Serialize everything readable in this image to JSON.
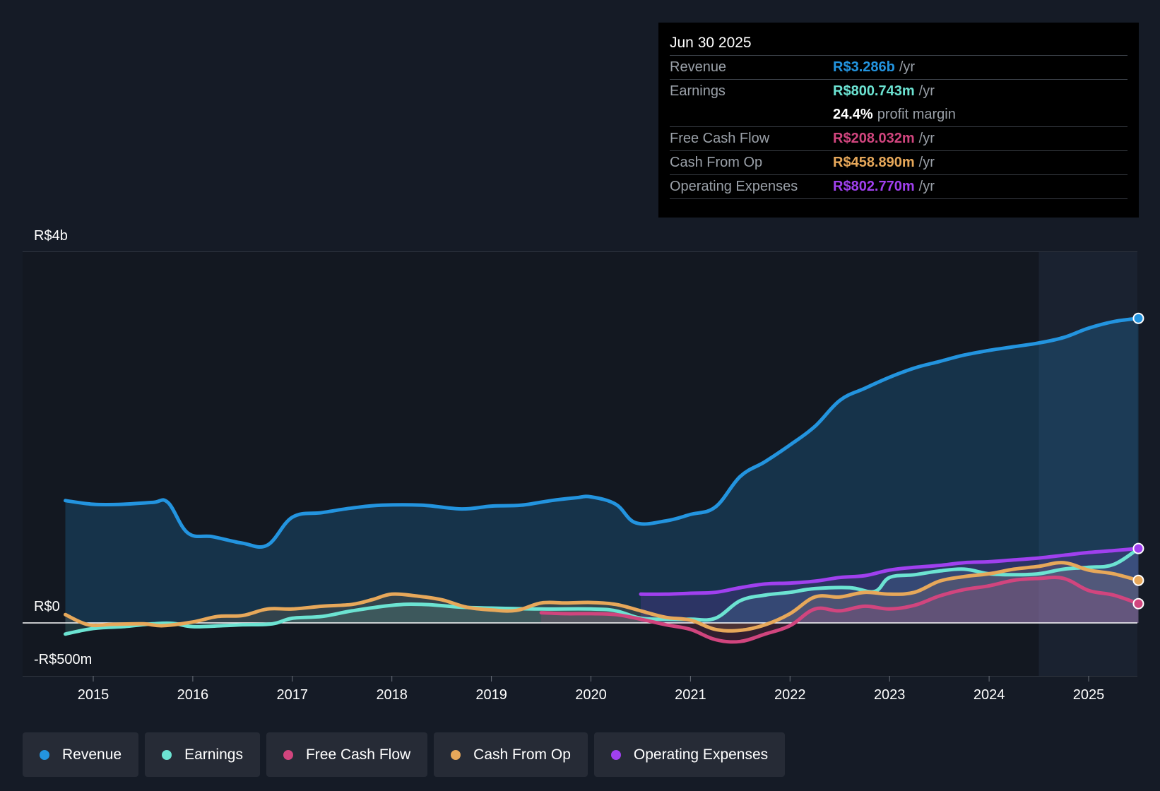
{
  "tooltip": {
    "date": "Jun 30 2025",
    "rows": {
      "revenue": {
        "name": "Revenue",
        "value": "R$3.286b",
        "unit": "/yr"
      },
      "earnings": {
        "name": "Earnings",
        "value": "R$800.743m",
        "unit": "/yr"
      },
      "margin": {
        "value": "24.4%",
        "label": "profit margin"
      },
      "fcf": {
        "name": "Free Cash Flow",
        "value": "R$208.032m",
        "unit": "/yr"
      },
      "cfo": {
        "name": "Cash From Op",
        "value": "R$458.890m",
        "unit": "/yr"
      },
      "opex": {
        "name": "Operating Expenses",
        "value": "R$802.770m",
        "unit": "/yr"
      }
    }
  },
  "legend": {
    "revenue": "Revenue",
    "earnings": "Earnings",
    "fcf": "Free Cash Flow",
    "cfo": "Cash From Op",
    "opex": "Operating Expenses"
  },
  "colors": {
    "revenue": "#2394df",
    "earnings": "#6ce3d2",
    "fcf": "#d1457e",
    "cfo": "#e7a85a",
    "opex": "#a040ef"
  },
  "chart_data": {
    "type": "line",
    "title": "",
    "xlabel": "",
    "ylabel": "",
    "ylim": [
      -500,
      4000
    ],
    "y_tick_labels": [
      "R$4b",
      "R$0",
      "-R$500m"
    ],
    "x_tick_labels": [
      "2015",
      "2016",
      "2017",
      "2018",
      "2019",
      "2020",
      "2021",
      "2022",
      "2023",
      "2024",
      "2025"
    ],
    "x_ticks": [
      2015,
      2016,
      2017,
      2018,
      2019,
      2020,
      2021,
      2022,
      2023,
      2024,
      2025
    ],
    "xlim": [
      2014.3,
      2025.5
    ],
    "highlight_from": 2024.5,
    "series": [
      {
        "key": "revenue",
        "name": "Revenue",
        "x": [
          2014.72,
          2015.0,
          2015.3,
          2015.6,
          2015.75,
          2015.95,
          2016.2,
          2016.5,
          2016.75,
          2017.0,
          2017.3,
          2017.6,
          2017.9,
          2018.3,
          2018.7,
          2019.0,
          2019.3,
          2019.6,
          2019.85,
          2020.0,
          2020.25,
          2020.45,
          2020.75,
          2021.0,
          2021.25,
          2021.5,
          2021.75,
          2022.0,
          2022.25,
          2022.5,
          2022.75,
          2023.0,
          2023.25,
          2023.5,
          2023.75,
          2024.0,
          2024.25,
          2024.5,
          2024.75,
          2025.0,
          2025.25,
          2025.5
        ],
        "values": [
          1320,
          1280,
          1280,
          1300,
          1300,
          970,
          930,
          860,
          840,
          1140,
          1190,
          1240,
          1270,
          1270,
          1230,
          1260,
          1270,
          1320,
          1350,
          1360,
          1280,
          1080,
          1100,
          1170,
          1250,
          1580,
          1740,
          1920,
          2120,
          2400,
          2530,
          2650,
          2750,
          2820,
          2890,
          2940,
          2980,
          3020,
          3080,
          3180,
          3250,
          3286
        ]
      },
      {
        "key": "earnings",
        "name": "Earnings",
        "x": [
          2014.72,
          2015.0,
          2015.3,
          2015.6,
          2015.8,
          2016.0,
          2016.3,
          2016.5,
          2016.8,
          2017.0,
          2017.3,
          2017.6,
          2018.0,
          2018.3,
          2018.7,
          2019.0,
          2019.5,
          2020.0,
          2020.25,
          2020.5,
          2020.75,
          2021.0,
          2021.25,
          2021.5,
          2021.75,
          2022.0,
          2022.25,
          2022.6,
          2022.85,
          2023.0,
          2023.25,
          2023.5,
          2023.75,
          2024.0,
          2024.25,
          2024.5,
          2024.75,
          2025.0,
          2025.25,
          2025.5
        ],
        "values": [
          -120,
          -60,
          -40,
          -10,
          -5,
          -40,
          -30,
          -20,
          -10,
          50,
          70,
          130,
          190,
          200,
          170,
          160,
          150,
          150,
          130,
          50,
          40,
          40,
          50,
          240,
          300,
          330,
          370,
          380,
          340,
          490,
          520,
          560,
          580,
          530,
          520,
          530,
          580,
          600,
          630,
          801
        ]
      },
      {
        "key": "fcf",
        "name": "Free Cash Flow",
        "x": [
          2019.5,
          2019.75,
          2020.0,
          2020.25,
          2020.5,
          2020.75,
          2021.0,
          2021.25,
          2021.5,
          2021.75,
          2022.0,
          2022.25,
          2022.5,
          2022.75,
          2023.0,
          2023.25,
          2023.5,
          2023.75,
          2024.0,
          2024.25,
          2024.5,
          2024.75,
          2025.0,
          2025.25,
          2025.5
        ],
        "values": [
          110,
          100,
          100,
          90,
          40,
          -20,
          -70,
          -180,
          -200,
          -120,
          -30,
          150,
          130,
          180,
          150,
          190,
          290,
          360,
          400,
          460,
          480,
          480,
          350,
          300,
          208
        ]
      },
      {
        "key": "cfo",
        "name": "Cash From Op",
        "x": [
          2014.72,
          2014.95,
          2015.2,
          2015.5,
          2015.7,
          2016.0,
          2016.25,
          2016.5,
          2016.75,
          2017.0,
          2017.3,
          2017.6,
          2017.8,
          2018.0,
          2018.25,
          2018.5,
          2018.75,
          2019.0,
          2019.25,
          2019.5,
          2019.75,
          2020.0,
          2020.25,
          2020.5,
          2020.75,
          2021.0,
          2021.25,
          2021.5,
          2021.75,
          2022.0,
          2022.25,
          2022.5,
          2022.75,
          2023.0,
          2023.25,
          2023.5,
          2023.75,
          2024.0,
          2024.25,
          2024.5,
          2024.75,
          2025.0,
          2025.25,
          2025.5
        ],
        "values": [
          90,
          -20,
          -15,
          -10,
          -30,
          10,
          70,
          80,
          150,
          150,
          180,
          200,
          250,
          310,
          290,
          250,
          170,
          140,
          135,
          215,
          215,
          220,
          200,
          130,
          60,
          30,
          -70,
          -80,
          -20,
          100,
          280,
          280,
          330,
          310,
          330,
          450,
          500,
          530,
          580,
          610,
          650,
          570,
          530,
          459
        ]
      },
      {
        "key": "opex",
        "name": "Operating Expenses",
        "x": [
          2020.5,
          2020.75,
          2021.0,
          2021.25,
          2021.5,
          2021.75,
          2022.0,
          2022.25,
          2022.5,
          2022.75,
          2023.0,
          2023.25,
          2023.5,
          2023.75,
          2024.0,
          2024.25,
          2024.5,
          2024.75,
          2025.0,
          2025.25,
          2025.5
        ],
        "values": [
          310,
          310,
          320,
          330,
          380,
          420,
          430,
          450,
          490,
          510,
          570,
          600,
          620,
          650,
          660,
          680,
          700,
          730,
          760,
          780,
          803
        ]
      }
    ]
  }
}
